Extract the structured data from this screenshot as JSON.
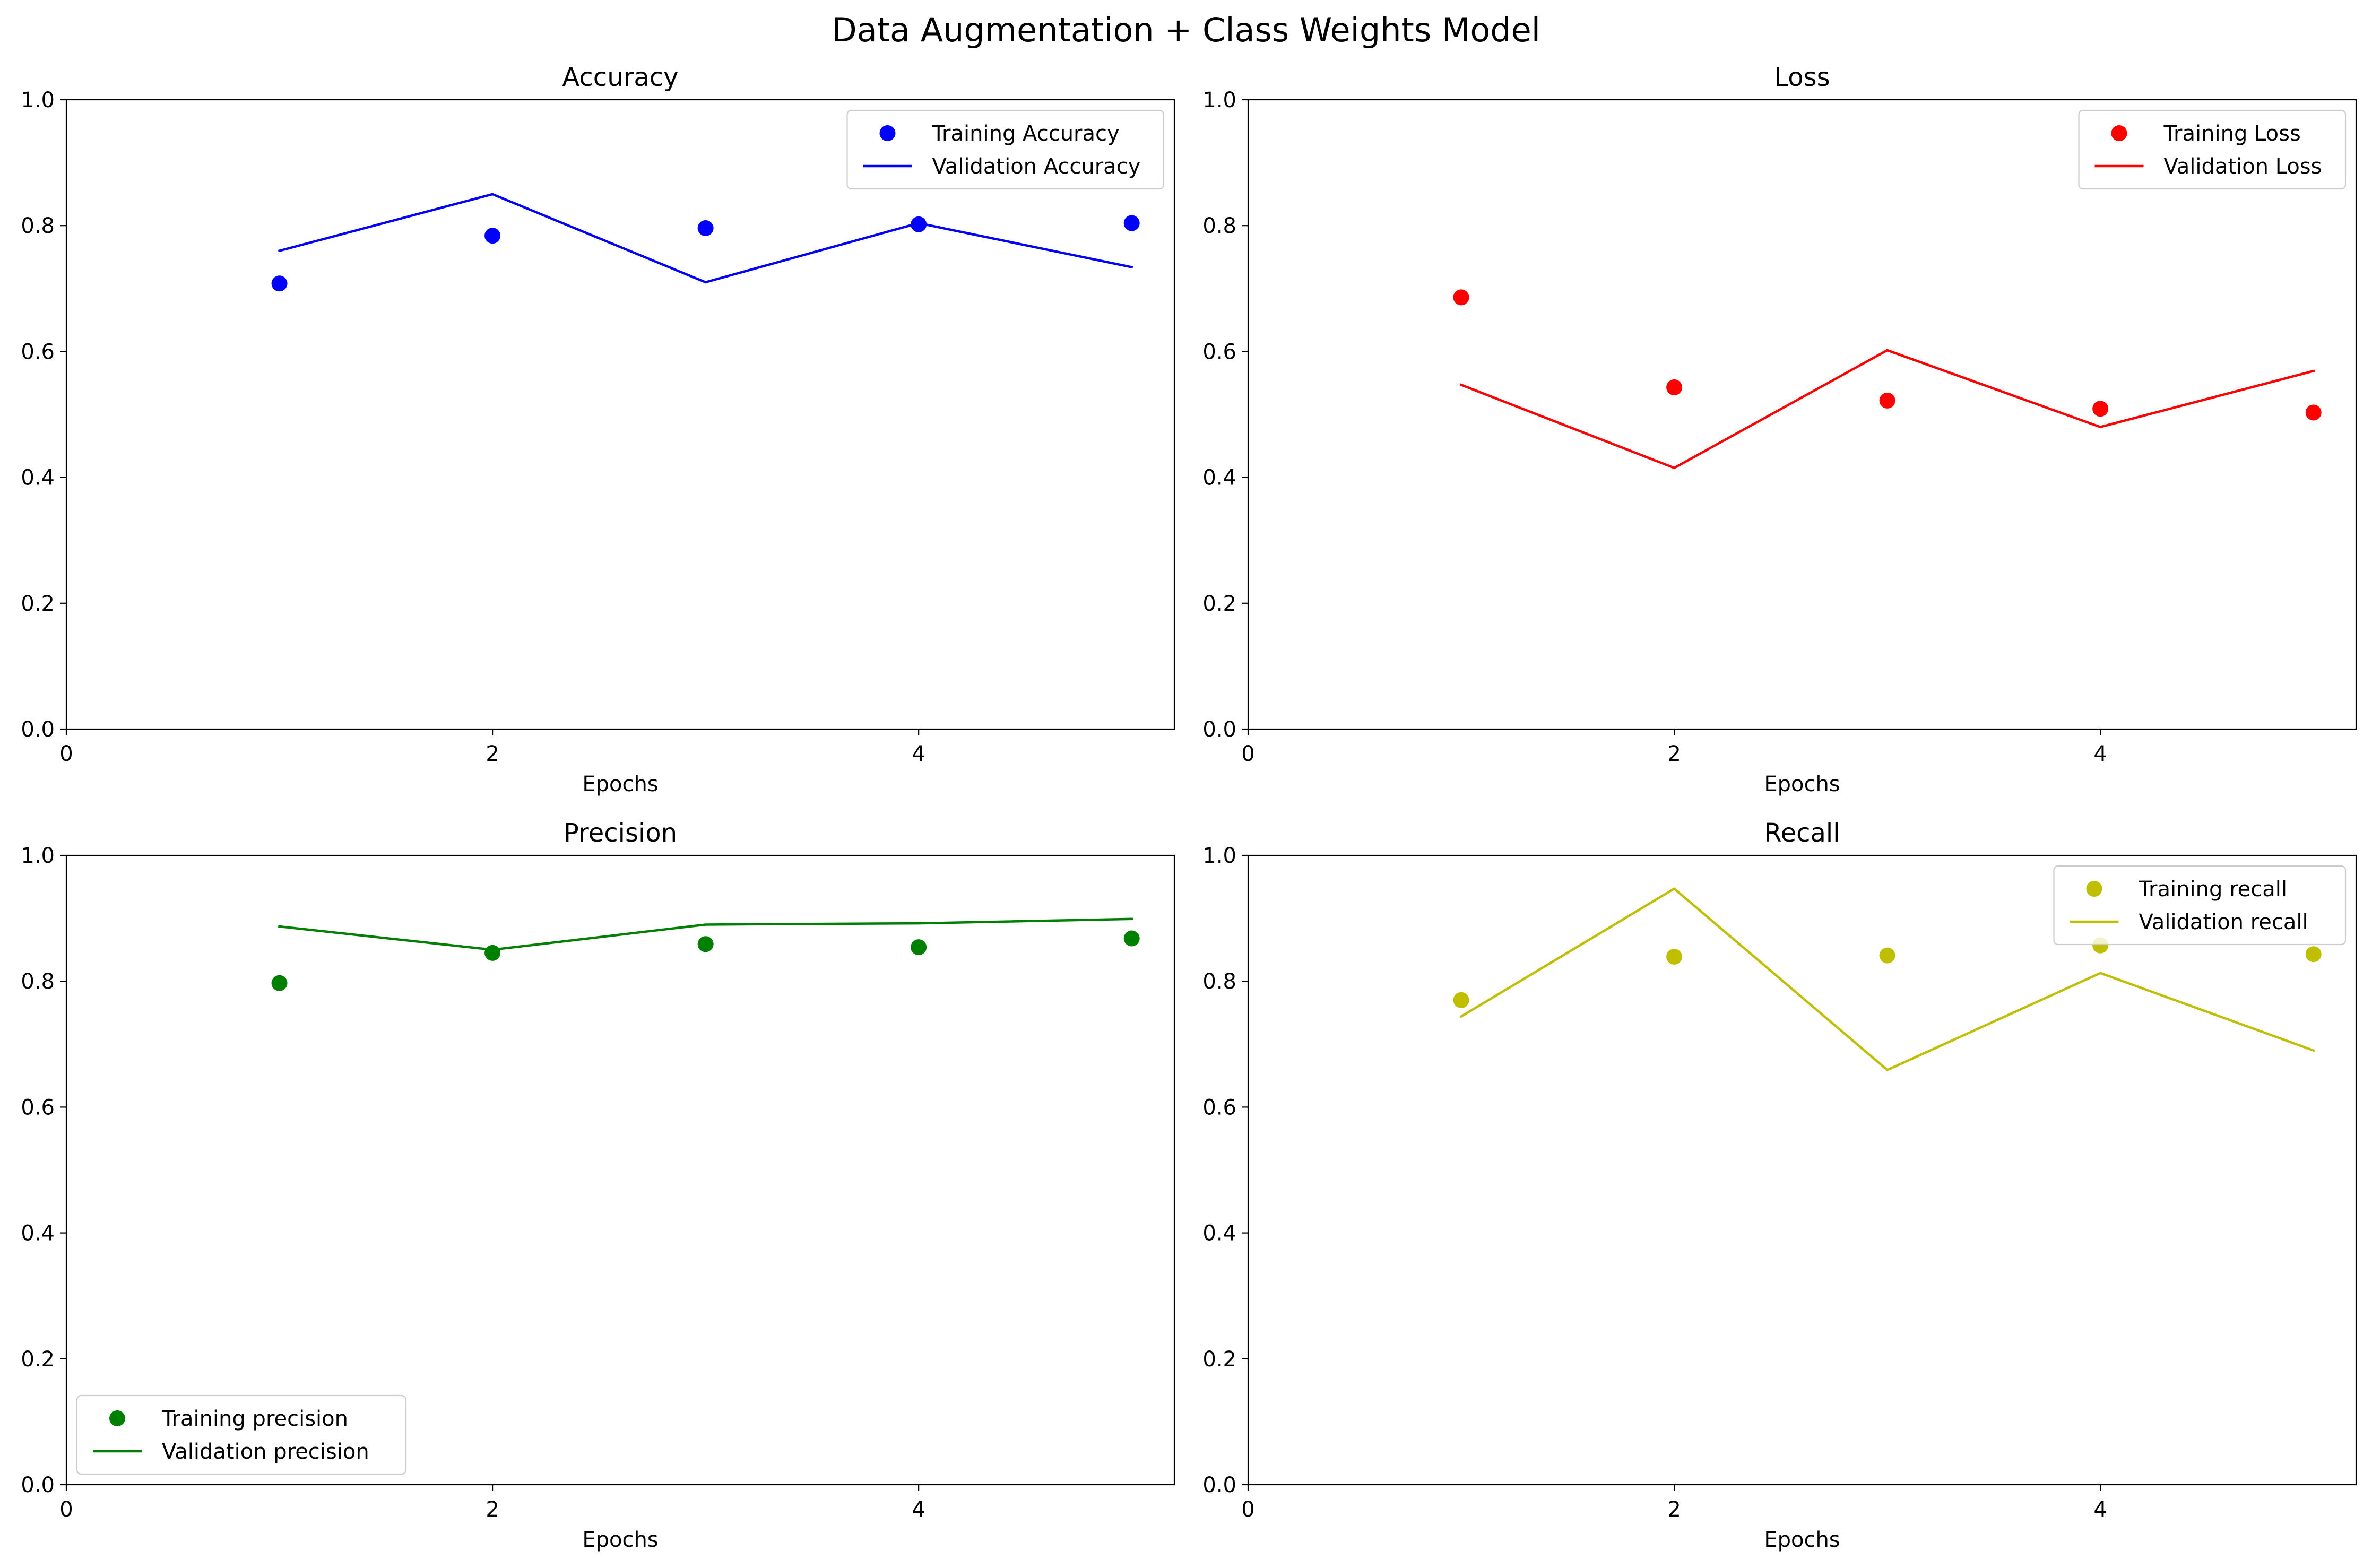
{
  "figure": {
    "title": "Data Augmentation + Class Weights Model"
  },
  "chart_data": [
    {
      "type": "line",
      "title": "Accuracy",
      "xlabel": "Epochs",
      "ylabel": "",
      "xlim": [
        0,
        5.2
      ],
      "ylim": [
        0,
        1
      ],
      "xticks": [
        0,
        2,
        4
      ],
      "yticks": [
        0.0,
        0.2,
        0.4,
        0.6,
        0.8,
        1.0
      ],
      "legend_position": "upper right",
      "x": [
        1,
        2,
        3,
        4,
        5
      ],
      "series": [
        {
          "name": "Training Accuracy",
          "kind": "scatter",
          "color": "#0000ff",
          "values": [
            0.708,
            0.784,
            0.796,
            0.802,
            0.804
          ]
        },
        {
          "name": "Validation Accuracy",
          "kind": "line",
          "color": "#0000ff",
          "values": [
            0.76,
            0.85,
            0.71,
            0.804,
            0.734
          ]
        }
      ]
    },
    {
      "type": "line",
      "title": "Loss",
      "xlabel": "Epochs",
      "ylabel": "",
      "xlim": [
        0,
        5.2
      ],
      "ylim": [
        0,
        1
      ],
      "xticks": [
        0,
        2,
        4
      ],
      "yticks": [
        0.0,
        0.2,
        0.4,
        0.6,
        0.8,
        1.0
      ],
      "legend_position": "upper right",
      "x": [
        1,
        2,
        3,
        4,
        5
      ],
      "series": [
        {
          "name": "Training Loss",
          "kind": "scatter",
          "color": "#ff0000",
          "values": [
            0.686,
            0.543,
            0.522,
            0.509,
            0.503
          ]
        },
        {
          "name": "Validation Loss",
          "kind": "line",
          "color": "#ff0000",
          "values": [
            0.547,
            0.415,
            0.602,
            0.48,
            0.569
          ]
        }
      ]
    },
    {
      "type": "line",
      "title": "Precision",
      "xlabel": "Epochs",
      "ylabel": "",
      "xlim": [
        0,
        5.2
      ],
      "ylim": [
        0,
        1
      ],
      "xticks": [
        0,
        2,
        4
      ],
      "yticks": [
        0.0,
        0.2,
        0.4,
        0.6,
        0.8,
        1.0
      ],
      "legend_position": "lower left",
      "x": [
        1,
        2,
        3,
        4,
        5
      ],
      "series": [
        {
          "name": "Training precision",
          "kind": "scatter",
          "color": "#008000",
          "values": [
            0.797,
            0.845,
            0.859,
            0.854,
            0.868
          ]
        },
        {
          "name": "Validation precision",
          "kind": "line",
          "color": "#008000",
          "values": [
            0.887,
            0.85,
            0.89,
            0.892,
            0.899
          ]
        }
      ]
    },
    {
      "type": "line",
      "title": "Recall",
      "xlabel": "Epochs",
      "ylabel": "",
      "xlim": [
        0,
        5.2
      ],
      "ylim": [
        0,
        1
      ],
      "xticks": [
        0,
        2,
        4
      ],
      "yticks": [
        0.0,
        0.2,
        0.4,
        0.6,
        0.8,
        1.0
      ],
      "legend_position": "upper right",
      "x": [
        1,
        2,
        3,
        4,
        5
      ],
      "series": [
        {
          "name": "Training recall",
          "kind": "scatter",
          "color": "#bfbf00",
          "values": [
            0.77,
            0.839,
            0.841,
            0.857,
            0.843
          ]
        },
        {
          "name": "Validation recall",
          "kind": "line",
          "color": "#bfbf00",
          "values": [
            0.744,
            0.947,
            0.659,
            0.813,
            0.69
          ]
        }
      ]
    }
  ]
}
